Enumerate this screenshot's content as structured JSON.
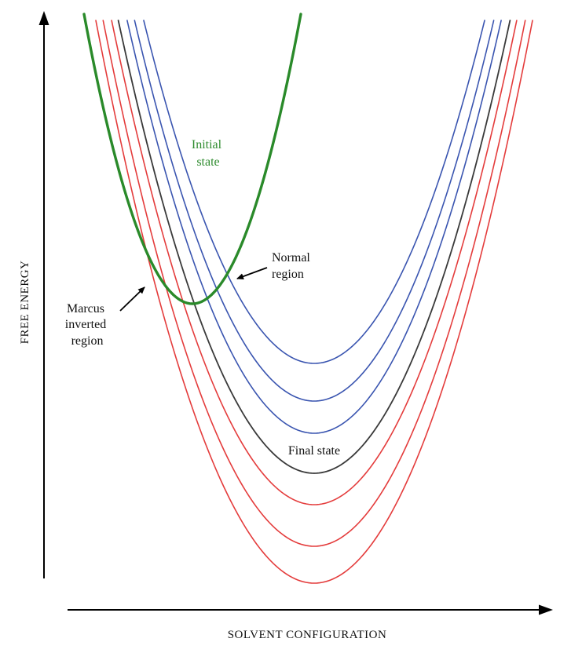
{
  "axes": {
    "x_label": "SOLVENT CONFIGURATION",
    "y_label": "FREE ENERGY"
  },
  "colors": {
    "initial": "#2a8a2a",
    "final": "#3a3a3a",
    "blue": "#3a55b0",
    "red": "#e43c3c",
    "axis": "#000000"
  },
  "curves": [
    {
      "name": "initial-state-curve",
      "kind": "initial",
      "color_key": "initial",
      "x_min": 245,
      "y_min": 387,
      "x_ref": 383,
      "y_ref": 18
    },
    {
      "name": "final-curve-blue-1",
      "kind": "final",
      "color_key": "blue",
      "x_min": 400,
      "y_min": 463
    },
    {
      "name": "final-curve-blue-2",
      "kind": "final",
      "color_key": "blue",
      "x_min": 400,
      "y_min": 511
    },
    {
      "name": "final-curve-blue-3",
      "kind": "final",
      "color_key": "blue",
      "x_min": 400,
      "y_min": 552
    },
    {
      "name": "final-state-curve",
      "kind": "final",
      "color_key": "final",
      "x_min": 400,
      "y_min": 603
    },
    {
      "name": "final-curve-red-1",
      "kind": "final",
      "color_key": "red",
      "x_min": 400,
      "y_min": 643
    },
    {
      "name": "final-curve-red-2",
      "kind": "final",
      "color_key": "red",
      "x_min": 400,
      "y_min": 696
    },
    {
      "name": "final-curve-red-3",
      "kind": "final",
      "color_key": "red",
      "x_min": 400,
      "y_min": 743
    }
  ],
  "labels": {
    "initial_state": [
      "Initial",
      "state"
    ],
    "final_state": "Final state",
    "normal_region": [
      "Normal",
      "region"
    ],
    "inverted_region": [
      "Marcus",
      "inverted",
      "region"
    ]
  }
}
